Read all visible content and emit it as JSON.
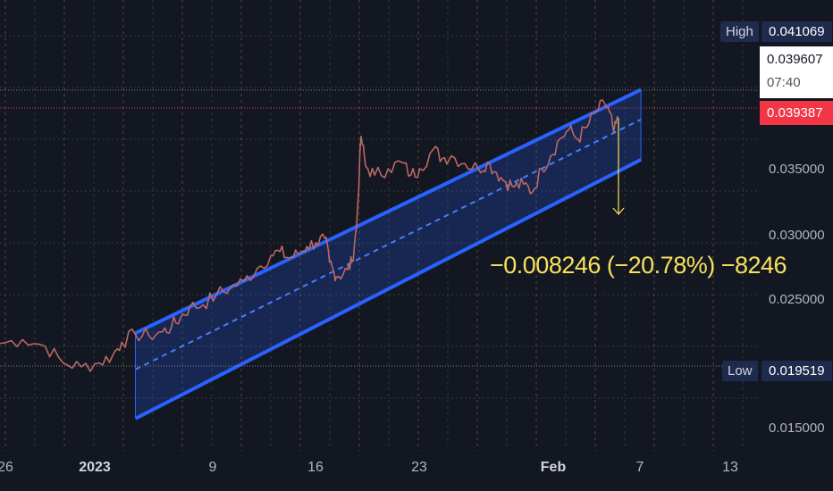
{
  "chart_data": {
    "type": "line",
    "y_ticks": [
      "0.035000",
      "0.030000",
      "0.025000",
      "0.015000"
    ],
    "x_ticks": [
      "26",
      "2023",
      "9",
      "16",
      "23",
      "Feb",
      "7",
      "13"
    ],
    "high": {
      "label": "High",
      "value": "0.041069"
    },
    "low": {
      "label": "Low",
      "value": "0.019519"
    },
    "last_price": "0.039607",
    "countdown": "07:40",
    "current_price": "0.039387",
    "measurement": "−0.008246 (−20.78%) −8246",
    "series": [
      {
        "points": [
          [
            0,
            0.0215
          ],
          [
            5,
            0.0218
          ],
          [
            10,
            0.0213
          ],
          [
            14,
            0.02
          ],
          [
            18,
            0.0197
          ],
          [
            22,
            0.02
          ],
          [
            25,
            0.0206
          ],
          [
            27,
            0.0216
          ],
          [
            30,
            0.0222
          ],
          [
            33,
            0.0221
          ],
          [
            36,
            0.0224
          ],
          [
            38,
            0.0228
          ],
          [
            40,
            0.0235
          ],
          [
            42,
            0.0243
          ],
          [
            45,
            0.0245
          ],
          [
            48,
            0.0253
          ],
          [
            51,
            0.0258
          ],
          [
            54,
            0.0263
          ],
          [
            57,
            0.0273
          ],
          [
            60,
            0.0283
          ],
          [
            62,
            0.0286
          ],
          [
            64,
            0.0281
          ],
          [
            66,
            0.0284
          ],
          [
            68,
            0.029
          ],
          [
            70,
            0.0293
          ],
          [
            72,
            0.0296
          ],
          [
            73,
            0.0278
          ],
          [
            74,
            0.027
          ],
          [
            75,
            0.0267
          ],
          [
            77,
            0.0272
          ],
          [
            78,
            0.0278
          ],
          [
            79,
            0.0305
          ],
          [
            80,
            0.0375
          ],
          [
            81,
            0.0352
          ],
          [
            83,
            0.0345
          ],
          [
            86,
            0.035
          ],
          [
            89,
            0.0355
          ],
          [
            91,
            0.0345
          ],
          [
            93,
            0.035
          ],
          [
            96,
            0.0365
          ],
          [
            98,
            0.0358
          ],
          [
            100,
            0.036
          ],
          [
            103,
            0.0354
          ],
          [
            106,
            0.035
          ],
          [
            108,
            0.0355
          ],
          [
            110,
            0.0347
          ],
          [
            112,
            0.034
          ],
          [
            114,
            0.0336
          ],
          [
            116,
            0.0338
          ],
          [
            118,
            0.0332
          ],
          [
            120,
            0.035
          ],
          [
            122,
            0.036
          ],
          [
            124,
            0.0373
          ],
          [
            126,
            0.038
          ],
          [
            128,
            0.0373
          ],
          [
            130,
            0.0382
          ],
          [
            132,
            0.0394
          ],
          [
            134,
            0.04
          ],
          [
            135,
            0.0394
          ],
          [
            136,
            0.0378
          ],
          [
            137,
            0.0389
          ]
        ]
      }
    ],
    "channel": {
      "upper": [
        [
          30,
          0.0223
        ],
        [
          142,
          0.0411
        ]
      ],
      "middle": [
        [
          30,
          0.0195
        ],
        [
          142,
          0.0388
        ]
      ],
      "lower": [
        [
          30,
          0.0157
        ],
        [
          142,
          0.0357
        ]
      ]
    },
    "measure_arrow": {
      "from": [
        137,
        0.0389
      ],
      "to": [
        137,
        0.0307
      ]
    }
  }
}
